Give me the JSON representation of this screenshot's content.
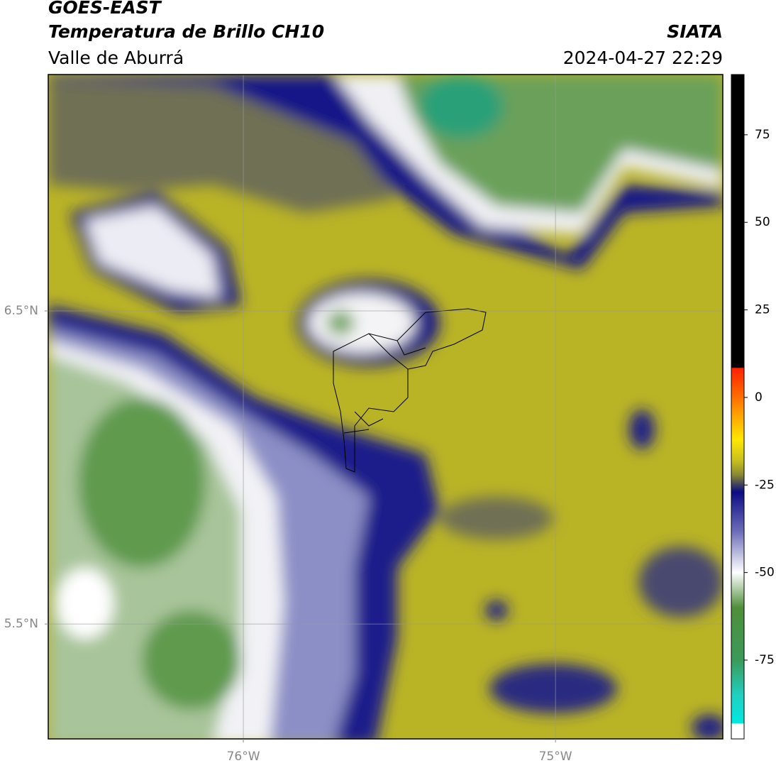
{
  "header": {
    "product": "GOES-EAST",
    "title": "Temperatura de Brillo CH10",
    "region": "Valle de Aburrá",
    "source": "SIATA",
    "datetime": "2024-04-27 22:29"
  },
  "map": {
    "xlim": [
      -76.625,
      -74.464
    ],
    "ylim": [
      5.133,
      7.255
    ],
    "xticks": [
      {
        "value": -76,
        "label": "76°W"
      },
      {
        "value": -75,
        "label": "75°W"
      }
    ],
    "yticks": [
      {
        "value": 5.5,
        "label": "5.5°N"
      },
      {
        "value": 6.5,
        "label": "6.5°N"
      }
    ],
    "grid": true
  },
  "colorbar": {
    "lim": [
      -97.5,
      92.2
    ],
    "ticks": [
      75,
      50,
      25,
      0,
      -25,
      -50,
      -75
    ],
    "colormap": [
      {
        "value": 92.2,
        "color": "#000000"
      },
      {
        "value": 8.5,
        "color": "#000000"
      },
      {
        "value": 8.4,
        "color": "#ff2000"
      },
      {
        "value": 0,
        "color": "#ff7000"
      },
      {
        "value": -12,
        "color": "#ffe800"
      },
      {
        "value": -18,
        "color": "#c8c020"
      },
      {
        "value": -22,
        "color": "#8a8a30"
      },
      {
        "value": -27,
        "color": "#0c0c84"
      },
      {
        "value": -38,
        "color": "#6a6ab8"
      },
      {
        "value": -50,
        "color": "#ffffff"
      },
      {
        "value": -60,
        "color": "#4f8f3a"
      },
      {
        "value": -75,
        "color": "#3a9a5a"
      },
      {
        "value": -85,
        "color": "#20d0c0"
      },
      {
        "value": -93,
        "color": "#00e8e0"
      },
      {
        "value": -93.1,
        "color": "#ffffff"
      },
      {
        "value": -97.5,
        "color": "#ffffff"
      }
    ]
  }
}
